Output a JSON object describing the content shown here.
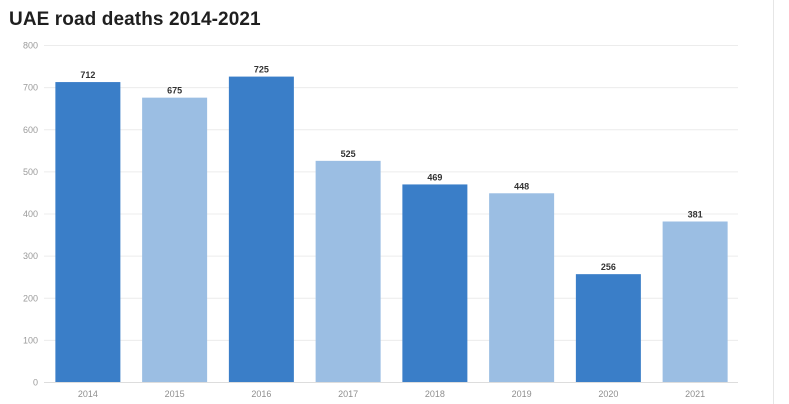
{
  "title": "UAE road deaths 2014-2021",
  "colors": {
    "dark": "#3a7ec8",
    "light": "#9bbee3",
    "grid": "#ececec",
    "axis": "#dddddd"
  },
  "chart_data": {
    "type": "bar",
    "title": "UAE road deaths 2014-2021",
    "xlabel": "",
    "ylabel": "",
    "ylim": [
      0,
      800
    ],
    "yticks": [
      0,
      100,
      200,
      300,
      400,
      500,
      600,
      700,
      800
    ],
    "grid": true,
    "categories": [
      "2014",
      "2015",
      "2016",
      "2017",
      "2018",
      "2019",
      "2020",
      "2021"
    ],
    "values": [
      712,
      675,
      725,
      525,
      469,
      448,
      256,
      381
    ],
    "bar_colors": [
      "dark",
      "light",
      "dark",
      "light",
      "dark",
      "light",
      "dark",
      "light"
    ],
    "data_labels": [
      "712",
      "675",
      "725",
      "525",
      "469",
      "448",
      "256",
      "381"
    ]
  }
}
